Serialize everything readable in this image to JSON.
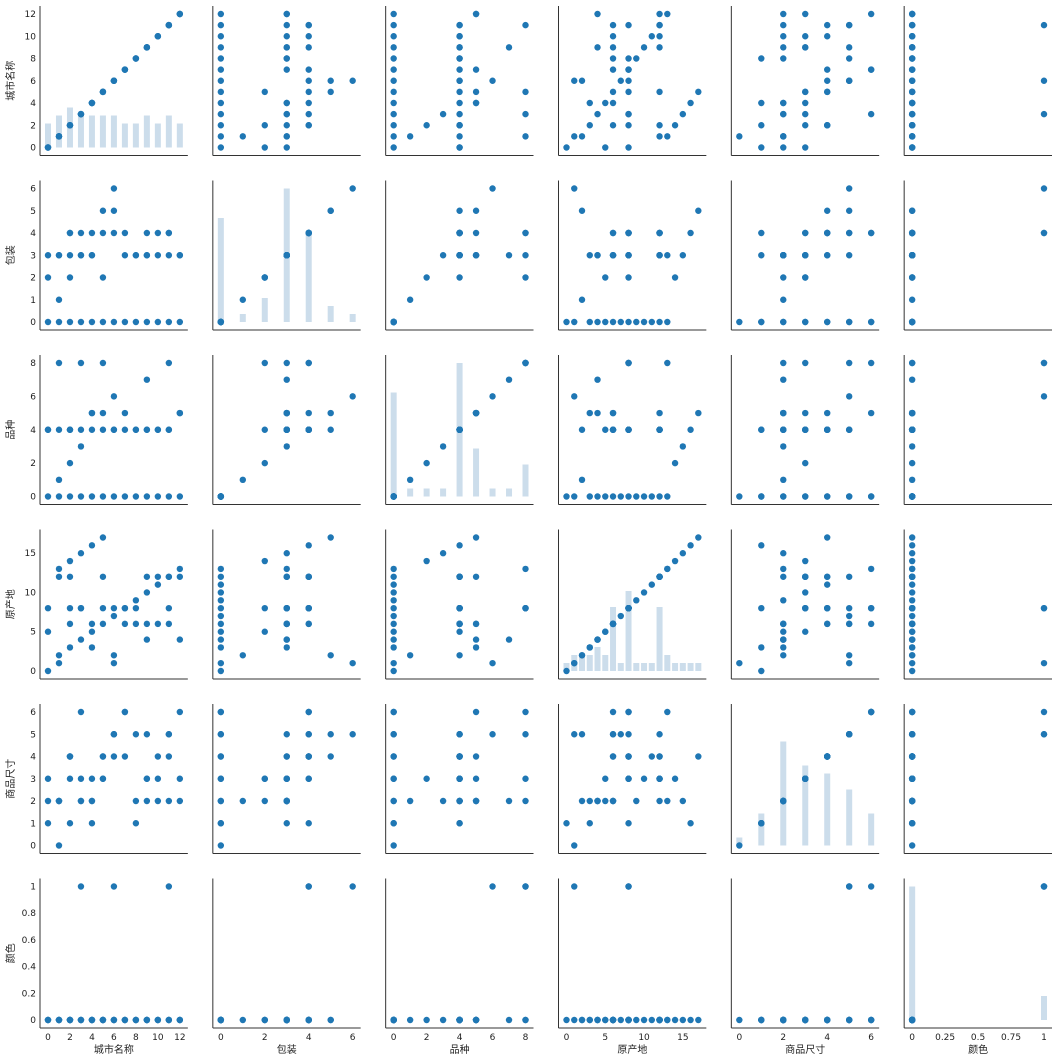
{
  "chart_data": {
    "type": "scatter",
    "variables": [
      {
        "name": "城市名称",
        "label": "城市名称",
        "range": [
          0,
          12
        ],
        "ticks": [
          0,
          2,
          4,
          6,
          8,
          10,
          12
        ]
      },
      {
        "name": "包装",
        "label": "包装",
        "range": [
          0,
          6
        ],
        "ticks": [
          0,
          1,
          2,
          3,
          4,
          5,
          6
        ],
        "xticks": [
          0,
          2,
          4,
          6
        ]
      },
      {
        "name": "品种",
        "label": "品种",
        "range": [
          0,
          8
        ],
        "ticks": [
          0,
          2,
          4,
          6,
          8
        ]
      },
      {
        "name": "原产地",
        "label": "原产地",
        "range": [
          0,
          17
        ],
        "ticks": [
          0,
          5,
          10,
          15
        ]
      },
      {
        "name": "商品尺寸",
        "label": "商品尺寸",
        "range": [
          0,
          6
        ],
        "ticks": [
          0,
          1,
          2,
          3,
          4,
          5,
          6
        ],
        "xticks": [
          0,
          2,
          4,
          6
        ]
      },
      {
        "name": "颜色",
        "label": "颜色",
        "range": [
          0,
          1
        ],
        "ticks": [
          0.0,
          0.2,
          0.4,
          0.6,
          0.8,
          1.0
        ],
        "xticks": [
          0.0,
          0.25,
          0.5,
          0.75,
          1.0
        ]
      }
    ],
    "rows": [
      [
        0,
        0,
        0,
        0,
        1,
        0
      ],
      [
        1,
        0,
        0,
        1,
        0,
        0
      ],
      [
        2,
        0,
        0,
        3,
        1,
        0
      ],
      [
        3,
        0,
        0,
        4,
        2,
        0
      ],
      [
        4,
        0,
        0,
        5,
        3,
        0
      ],
      [
        5,
        0,
        0,
        6,
        4,
        0
      ],
      [
        6,
        0,
        0,
        7,
        5,
        0
      ],
      [
        7,
        0,
        0,
        8,
        6,
        0
      ],
      [
        8,
        0,
        0,
        9,
        2,
        0
      ],
      [
        9,
        0,
        0,
        10,
        3,
        0
      ],
      [
        10,
        0,
        0,
        11,
        4,
        0
      ],
      [
        11,
        0,
        0,
        12,
        5,
        0
      ],
      [
        12,
        0,
        0,
        13,
        6,
        0
      ],
      [
        1,
        1,
        1,
        2,
        2,
        0
      ],
      [
        2,
        2,
        2,
        14,
        3,
        0
      ],
      [
        3,
        3,
        3,
        15,
        2,
        0
      ],
      [
        4,
        4,
        4,
        16,
        1,
        0
      ],
      [
        5,
        5,
        5,
        17,
        4,
        0
      ],
      [
        6,
        6,
        6,
        1,
        5,
        1
      ],
      [
        0,
        3,
        4,
        8,
        3,
        0
      ],
      [
        1,
        3,
        8,
        13,
        2,
        0
      ],
      [
        2,
        4,
        4,
        12,
        4,
        0
      ],
      [
        3,
        4,
        8,
        8,
        6,
        1
      ],
      [
        4,
        3,
        5,
        6,
        2,
        0
      ],
      [
        5,
        2,
        8,
        8,
        3,
        0
      ],
      [
        6,
        5,
        4,
        2,
        5,
        0
      ],
      [
        7,
        4,
        5,
        6,
        6,
        0
      ],
      [
        8,
        3,
        4,
        8,
        1,
        0
      ],
      [
        9,
        3,
        7,
        4,
        2,
        0
      ],
      [
        10,
        4,
        4,
        12,
        3,
        0
      ],
      [
        11,
        4,
        8,
        8,
        5,
        1
      ],
      [
        12,
        3,
        5,
        4,
        2,
        0
      ],
      [
        1,
        3,
        4,
        12,
        2,
        0
      ],
      [
        2,
        4,
        4,
        8,
        4,
        0
      ],
      [
        4,
        3,
        5,
        3,
        2,
        0
      ],
      [
        6,
        4,
        4,
        8,
        4,
        0
      ],
      [
        8,
        3,
        4,
        6,
        5,
        0
      ],
      [
        10,
        3,
        4,
        6,
        2,
        0
      ],
      [
        0,
        2,
        4,
        5,
        2,
        0
      ],
      [
        2,
        3,
        4,
        6,
        4,
        0
      ],
      [
        9,
        3,
        4,
        12,
        3,
        0
      ],
      [
        11,
        3,
        4,
        6,
        2,
        0
      ],
      [
        12,
        3,
        5,
        12,
        3,
        0
      ],
      [
        3,
        3,
        4,
        8,
        3,
        0
      ],
      [
        5,
        4,
        4,
        12,
        3,
        0
      ],
      [
        7,
        3,
        4,
        8,
        4,
        0
      ],
      [
        9,
        4,
        4,
        6,
        5,
        0
      ],
      [
        11,
        4,
        4,
        12,
        4,
        0
      ]
    ],
    "marker_color": "#1f77b4",
    "kde_color": "#c6d9e9",
    "grid": false,
    "legend": "none"
  }
}
